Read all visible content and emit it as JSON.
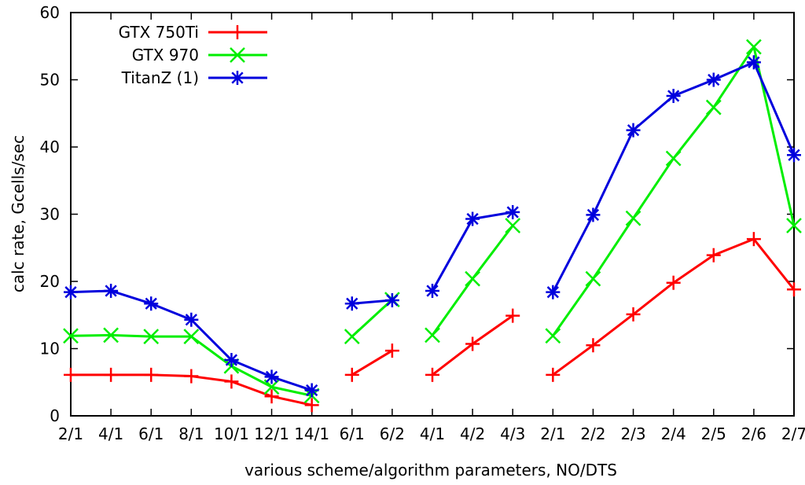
{
  "chart_data": {
    "type": "line",
    "xlabel": "various scheme/algorithm parameters, NO/DTS",
    "ylabel": "calc rate, Gcells/sec",
    "ylim": [
      0,
      60
    ],
    "yticks": [
      0,
      10,
      20,
      30,
      40,
      50,
      60
    ],
    "grid": false,
    "legend_position": "top-left",
    "categories": [
      "2/1",
      "4/1",
      "6/1",
      "8/1",
      "10/1",
      "12/1",
      "14/1",
      "6/1",
      "6/2",
      "4/1",
      "4/2",
      "4/3",
      "2/1",
      "2/2",
      "2/3",
      "2/4",
      "2/5",
      "2/6",
      "2/7"
    ],
    "segments": [
      [
        0,
        6
      ],
      [
        7,
        8
      ],
      [
        9,
        11
      ],
      [
        12,
        18
      ]
    ],
    "series": [
      {
        "name": "GTX 750Ti",
        "color": "#ff0000",
        "marker": "plus",
        "values": [
          6.1,
          6.1,
          6.1,
          5.9,
          5.1,
          2.9,
          1.6,
          6.1,
          9.7,
          6.1,
          10.7,
          14.9,
          6.1,
          10.5,
          15.1,
          19.8,
          23.9,
          26.3,
          18.8
        ]
      },
      {
        "name": "GTX 970",
        "color": "#00ee00",
        "marker": "x",
        "values": [
          11.9,
          12.0,
          11.8,
          11.8,
          7.4,
          4.3,
          3.0,
          11.8,
          17.3,
          12.0,
          20.4,
          28.3,
          11.9,
          20.4,
          29.4,
          38.3,
          45.9,
          54.9,
          28.3
        ]
      },
      {
        "name": "TitanZ (1)",
        "color": "#0000dd",
        "marker": "asterisk",
        "values": [
          18.4,
          18.6,
          16.7,
          14.3,
          8.3,
          5.8,
          3.8,
          16.7,
          17.2,
          18.6,
          29.3,
          30.3,
          18.4,
          29.9,
          42.5,
          47.6,
          50.0,
          52.6,
          38.8
        ]
      }
    ]
  }
}
